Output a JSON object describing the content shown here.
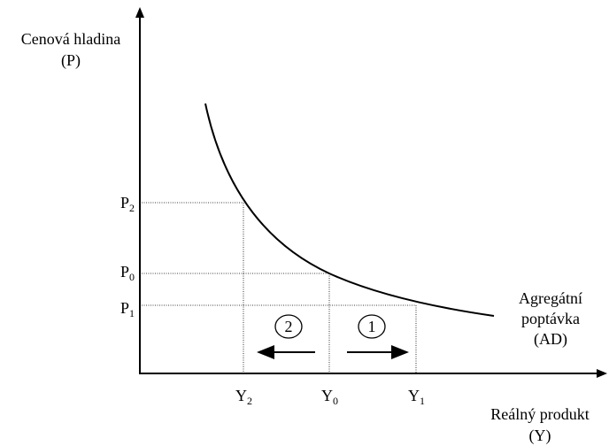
{
  "y_axis": {
    "label": "Cenová hladina",
    "unit": "(P)"
  },
  "x_axis": {
    "label": "Reálný produkt",
    "unit": "(Y)"
  },
  "curve": {
    "lines": [
      "Agregátní",
      "poptávka",
      "(AD)"
    ]
  },
  "price_levels": [
    {
      "symbol": "P",
      "sub": "2"
    },
    {
      "symbol": "P",
      "sub": "0"
    },
    {
      "symbol": "P",
      "sub": "1"
    }
  ],
  "output_levels": [
    {
      "symbol": "Y",
      "sub": "2"
    },
    {
      "symbol": "Y",
      "sub": "0"
    },
    {
      "symbol": "Y",
      "sub": "1"
    }
  ],
  "shifts": [
    {
      "label": "2"
    },
    {
      "label": "1"
    }
  ]
}
